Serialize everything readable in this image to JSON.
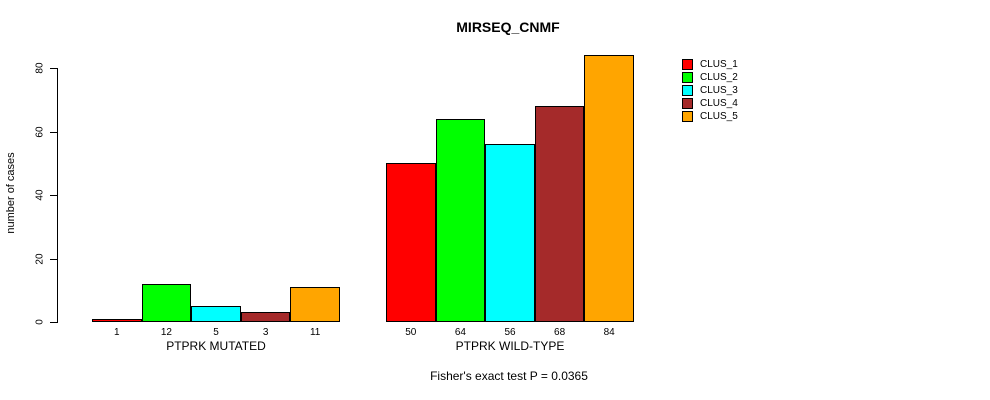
{
  "chart_data": {
    "type": "bar",
    "title": "MIRSEQ_CNMF",
    "ylabel": "number of cases",
    "xlabel": "",
    "categories": [
      "PTPRK MUTATED",
      "PTPRK WILD-TYPE"
    ],
    "series": [
      {
        "name": "CLUS_1",
        "color": "#FF0000",
        "values": [
          1,
          50
        ]
      },
      {
        "name": "CLUS_2",
        "color": "#00FF00",
        "values": [
          12,
          64
        ]
      },
      {
        "name": "CLUS_3",
        "color": "#00FFFF",
        "values": [
          5,
          56
        ]
      },
      {
        "name": "CLUS_4",
        "color": "#A52A2A",
        "values": [
          3,
          68
        ]
      },
      {
        "name": "CLUS_5",
        "color": "#FFA500",
        "values": [
          11,
          84
        ]
      }
    ],
    "y_ticks": [
      0,
      20,
      40,
      60,
      80
    ],
    "ylim": [
      0,
      84
    ],
    "grid": false,
    "bar_value_labels_shown": true,
    "legend_position": "right",
    "annotation": "Fisher's exact test P = 0.0365"
  }
}
